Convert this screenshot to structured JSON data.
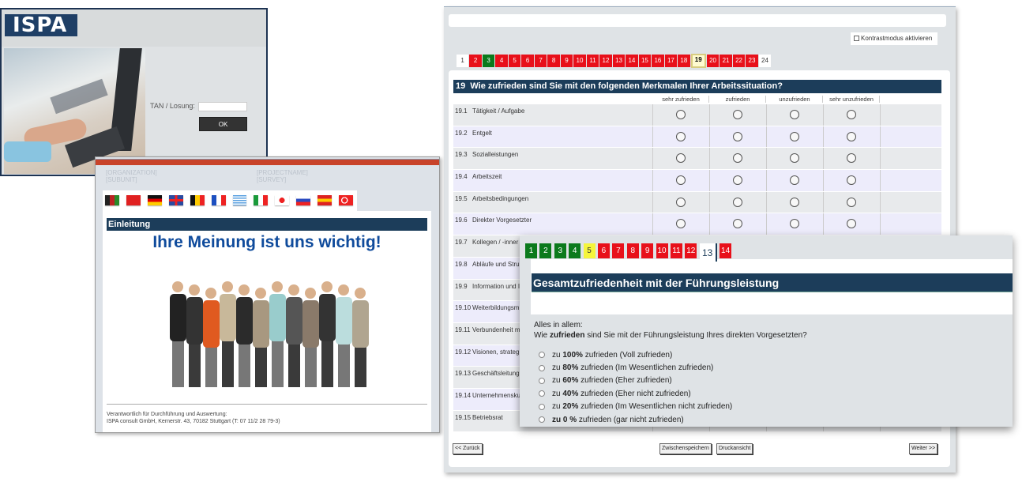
{
  "login": {
    "logo": "ISPA",
    "tan_label": "TAN / Losung:",
    "tan_value": "",
    "ok_label": "OK"
  },
  "intro": {
    "org": "[ORGANIZATION]",
    "subunit": "[SUBUNIT]",
    "project": "[PROJECTNAME]",
    "survey": "[SURVEY]",
    "flags": [
      "afghanistan",
      "china",
      "germany",
      "united-kingdom",
      "belgium",
      "france",
      "greece",
      "italy",
      "japan",
      "russia",
      "spain",
      "turkey"
    ],
    "section": "Einleitung",
    "headline": "Ihre Meinung ist uns wichtig!",
    "footer_line1": "Verantwortlich für Durchführung und Auswertung:",
    "footer_line2": "ISPA consult GmbH, Kernerstr. 43, 70182 Stuttgart (T: 07 11/2 28 79-3)"
  },
  "survey": {
    "contrast_label": "Kontrastmodus aktivieren",
    "pages": [
      {
        "n": "1",
        "s": "white"
      },
      {
        "n": "2",
        "s": "red"
      },
      {
        "n": "3",
        "s": "green"
      },
      {
        "n": "4",
        "s": "red"
      },
      {
        "n": "5",
        "s": "red"
      },
      {
        "n": "6",
        "s": "red"
      },
      {
        "n": "7",
        "s": "red"
      },
      {
        "n": "8",
        "s": "red"
      },
      {
        "n": "9",
        "s": "red"
      },
      {
        "n": "10",
        "s": "red"
      },
      {
        "n": "11",
        "s": "red"
      },
      {
        "n": "12",
        "s": "red"
      },
      {
        "n": "13",
        "s": "red"
      },
      {
        "n": "14",
        "s": "red"
      },
      {
        "n": "15",
        "s": "red"
      },
      {
        "n": "16",
        "s": "red"
      },
      {
        "n": "17",
        "s": "red"
      },
      {
        "n": "18",
        "s": "red"
      },
      {
        "n": "19",
        "s": "cur"
      },
      {
        "n": "20",
        "s": "red"
      },
      {
        "n": "21",
        "s": "red"
      },
      {
        "n": "22",
        "s": "red"
      },
      {
        "n": "23",
        "s": "red"
      },
      {
        "n": "24",
        "s": "white"
      }
    ],
    "question_no": "19",
    "question_pre": "Wie ",
    "question_bold": "zufrieden",
    "question_post": " sind Sie mit den folgenden Merkmalen Ihrer Arbeitssituation?",
    "columns": [
      "sehr zufrieden",
      "zufrieden",
      "unzufrieden",
      "sehr unzufrieden"
    ],
    "rows": [
      {
        "n": "19.1",
        "t": "Tätigkeit / Aufgabe"
      },
      {
        "n": "19.2",
        "t": "Entgelt"
      },
      {
        "n": "19.3",
        "t": "Sozialleistungen"
      },
      {
        "n": "19.4",
        "t": "Arbeitszeit"
      },
      {
        "n": "19.5",
        "t": "Arbeitsbedingungen"
      },
      {
        "n": "19.6",
        "t": "Direkter Vorgesetzter"
      },
      {
        "n": "19.7",
        "t": "Kollegen / -inner"
      },
      {
        "n": "19.8",
        "t": "Abläufe und Stru"
      },
      {
        "n": "19.9",
        "t": "Information und I"
      },
      {
        "n": "19.10",
        "t": "Weiterbildungsm"
      },
      {
        "n": "19.11",
        "t": "Verbundenheit m"
      },
      {
        "n": "19.12",
        "t": "Visionen, strateg"
      },
      {
        "n": "19.13",
        "t": "Geschäftsleitung"
      },
      {
        "n": "19.14",
        "t": "Unternehmensku"
      },
      {
        "n": "19.15",
        "t": "Betriebsrat"
      }
    ],
    "back_label": "<< Zurück",
    "save_label": "Zwischenspeichern",
    "print_label": "Druckansicht",
    "next_label": "Weiter >>"
  },
  "overlay": {
    "pages": [
      {
        "n": "1",
        "s": "green"
      },
      {
        "n": "2",
        "s": "green"
      },
      {
        "n": "3",
        "s": "green"
      },
      {
        "n": "4",
        "s": "green"
      },
      {
        "n": "5",
        "s": "yellow"
      },
      {
        "n": "6",
        "s": "red"
      },
      {
        "n": "7",
        "s": "red"
      },
      {
        "n": "8",
        "s": "red"
      },
      {
        "n": "9",
        "s": "red"
      },
      {
        "n": "10",
        "s": "red"
      },
      {
        "n": "11",
        "s": "red"
      },
      {
        "n": "12",
        "s": "red"
      },
      {
        "n": "13",
        "s": "cur"
      },
      {
        "n": "14",
        "s": "red"
      }
    ],
    "title": "Gesamtzufriedenheit mit der Führungsleistung",
    "intro_line": "Alles in allem:",
    "q_pre": "Wie ",
    "q_bold": "zufrieden",
    "q_post": " sind Sie mit der Führungsleistung Ihres direkten Vorgesetzten?",
    "options": [
      {
        "pre": "zu ",
        "b": "100%",
        "post": " zufrieden (Voll zufrieden)"
      },
      {
        "pre": "zu ",
        "b": "80%",
        "post": " zufrieden (Im Wesentlichen zufrieden)"
      },
      {
        "pre": "zu ",
        "b": "60%",
        "post": " zufrieden (Eher zufrieden)"
      },
      {
        "pre": "zu ",
        "b": "40%",
        "post": " zufrieden (Eher nicht zufrieden)"
      },
      {
        "pre": "zu ",
        "b": "20%",
        "post": " zufrieden (Im Wesentlichen nicht zufrieden)"
      },
      {
        "pre": "",
        "b": "zu 0 %",
        "post": " zufrieden (gar nicht zufrieden)"
      }
    ]
  },
  "colors": {
    "navy": "#1c3d5a",
    "red": "#e8101a",
    "green": "#0b7a1c",
    "yellow": "#f5f53c",
    "headline_blue": "#0f4b9c"
  }
}
